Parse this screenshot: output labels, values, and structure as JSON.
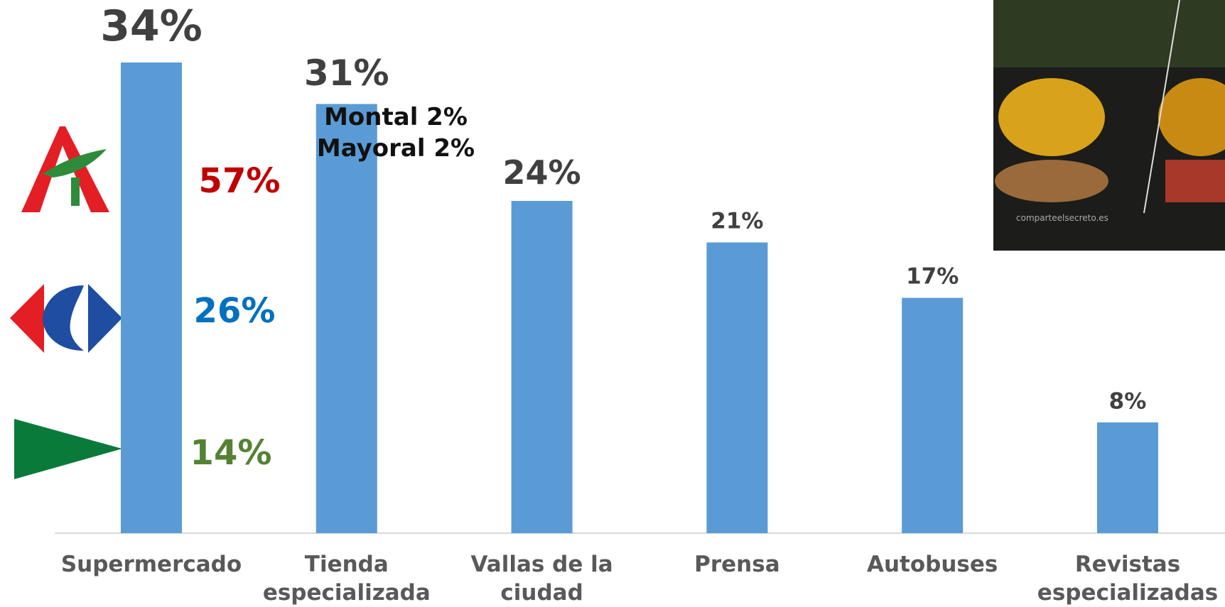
{
  "chart_data": {
    "type": "bar",
    "categories": [
      "Supermercado",
      "Tienda especializada",
      "Vallas de la ciudad",
      "Prensa",
      "Autobuses",
      "Revistas especializadas"
    ],
    "values": [
      34,
      31,
      24,
      21,
      17,
      8
    ],
    "value_labels": [
      "34%",
      "31%",
      "24%",
      "21%",
      "17%",
      "8%"
    ],
    "color": "#5b9bd5",
    "annotations": [
      {
        "text": "57%",
        "color": "#c00000"
      },
      {
        "text": "26%",
        "color": "#0070c0"
      },
      {
        "text": "14%",
        "color": "#548235"
      }
    ],
    "notes": [
      "Montal 2%",
      "Mayoral 2%"
    ]
  },
  "image": {
    "caption": "comparteelsecreto.es"
  }
}
